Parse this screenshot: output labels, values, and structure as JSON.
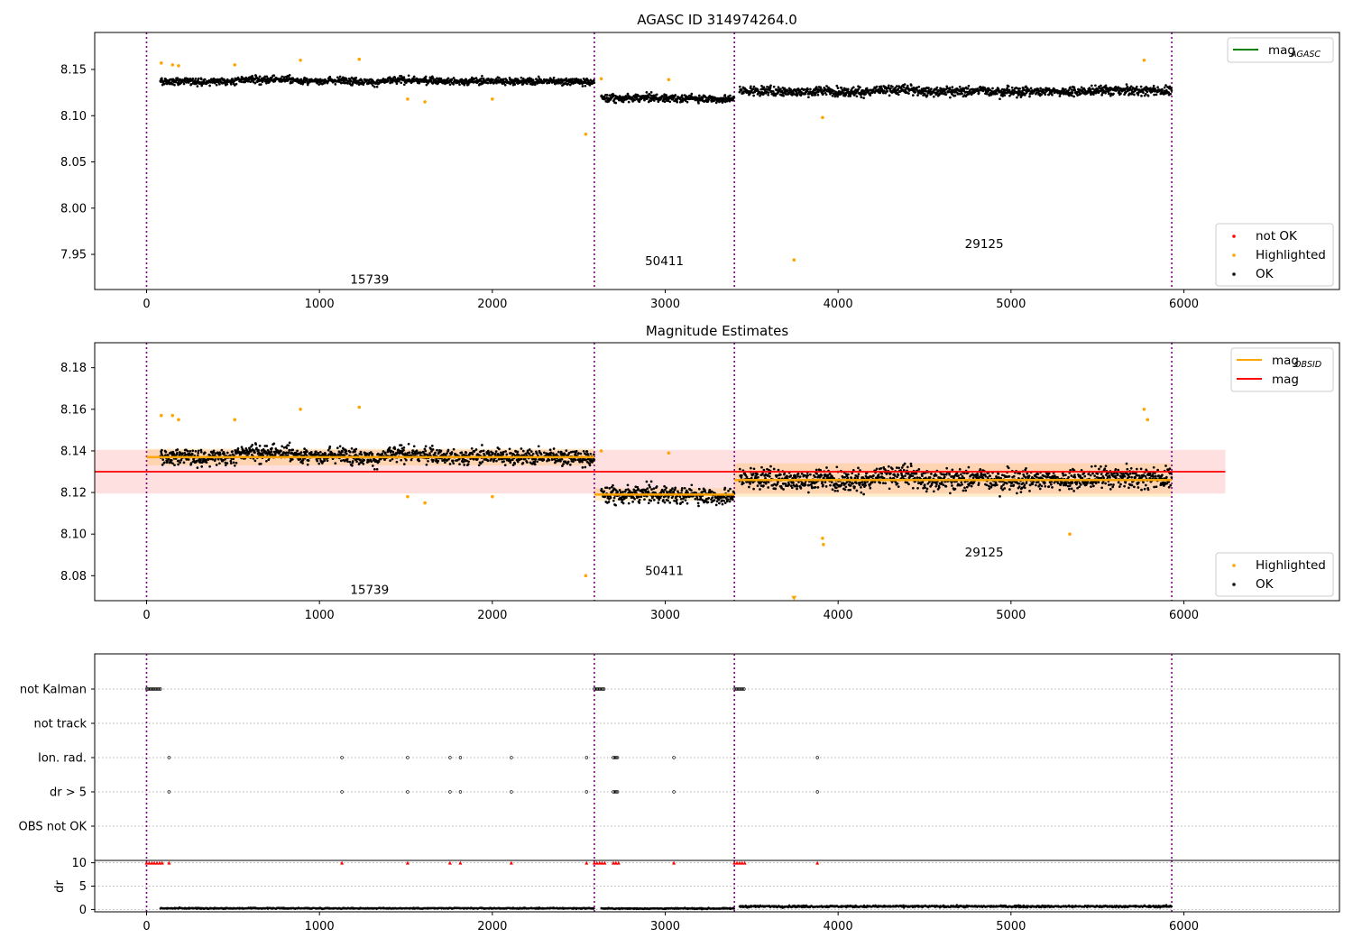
{
  "chart_data": [
    {
      "type": "scatter",
      "title": "AGASC ID 314974264.0",
      "xlim": [
        -300,
        6900
      ],
      "ylim": [
        7.912,
        8.19
      ],
      "xticks": [
        0,
        1000,
        2000,
        3000,
        4000,
        5000,
        6000
      ],
      "yticks": [
        7.95,
        8.0,
        8.05,
        8.1,
        8.15
      ],
      "obs_boundaries": [
        0,
        2590,
        3400,
        5930
      ],
      "obs_labels": [
        {
          "text": "15739",
          "x": 1290,
          "y": 7.922
        },
        {
          "text": "50411",
          "x": 2995,
          "y": 7.942
        },
        {
          "text": "29125",
          "x": 4845,
          "y": 7.961
        }
      ],
      "segments": [
        {
          "x": [
            80,
            2590
          ],
          "center": 8.138,
          "spread": 0.007,
          "extreme": 8.155
        },
        {
          "x": [
            2630,
            3400
          ],
          "center": 8.119,
          "spread": 0.007,
          "extreme": 8.135
        },
        {
          "x": [
            3430,
            5930
          ],
          "center": 8.127,
          "spread": 0.009,
          "extreme": 8.148
        }
      ],
      "highlighted_points": [
        [
          85,
          8.157
        ],
        [
          150,
          8.155
        ],
        [
          185,
          8.154
        ],
        [
          510,
          8.155
        ],
        [
          890,
          8.16
        ],
        [
          1230,
          8.161
        ],
        [
          1510,
          8.118
        ],
        [
          1610,
          8.115
        ],
        [
          2000,
          8.118
        ],
        [
          2540,
          8.08
        ],
        [
          2630,
          8.14
        ],
        [
          3020,
          8.139
        ],
        [
          3745,
          7.944
        ],
        [
          3910,
          8.098
        ],
        [
          5770,
          8.16
        ]
      ],
      "lines": [
        {
          "name": "mag_AGASC",
          "label_main": "mag",
          "label_sub": "AGASC",
          "color": "#008000"
        }
      ],
      "legend_points": [
        {
          "label": "not OK",
          "color": "#ff0000"
        },
        {
          "label": "Highlighted",
          "color": "#ffa500"
        },
        {
          "label": "OK",
          "color": "#000000"
        }
      ]
    },
    {
      "type": "scatter",
      "title": "Magnitude Estimates",
      "xlim": [
        -300,
        6900
      ],
      "ylim": [
        8.068,
        8.192
      ],
      "xticks": [
        0,
        1000,
        2000,
        3000,
        4000,
        5000,
        6000
      ],
      "yticks": [
        8.08,
        8.1,
        8.12,
        8.14,
        8.16,
        8.18
      ],
      "obs_boundaries": [
        0,
        2590,
        3400,
        5930
      ],
      "obs_labels": [
        {
          "text": "15739",
          "x": 1290,
          "y": 8.073
        },
        {
          "text": "50411",
          "x": 2995,
          "y": 8.082
        },
        {
          "text": "29125",
          "x": 4845,
          "y": 8.091
        }
      ],
      "mag": 8.13,
      "mag_band": [
        8.1195,
        8.1405
      ],
      "mag_xrange": [
        -300,
        6240
      ],
      "mag_obsid": [
        {
          "x": [
            0,
            2590
          ],
          "value": 8.137,
          "band": [
            8.133,
            8.141
          ]
        },
        {
          "x": [
            2590,
            3400
          ],
          "value": 8.119,
          "band": [
            8.116,
            8.122
          ]
        },
        {
          "x": [
            3400,
            5930
          ],
          "value": 8.126,
          "band": [
            8.118,
            8.134
          ]
        }
      ],
      "highlighted_points": [
        [
          85,
          8.157
        ],
        [
          150,
          8.157
        ],
        [
          185,
          8.155
        ],
        [
          510,
          8.155
        ],
        [
          890,
          8.16
        ],
        [
          1230,
          8.161
        ],
        [
          1510,
          8.118
        ],
        [
          1610,
          8.115
        ],
        [
          2000,
          8.118
        ],
        [
          2540,
          8.08
        ],
        [
          2630,
          8.14
        ],
        [
          3020,
          8.139
        ],
        [
          3910,
          8.098
        ],
        [
          3915,
          8.095
        ],
        [
          5340,
          8.1
        ],
        [
          5770,
          8.16
        ],
        [
          5790,
          8.155
        ]
      ],
      "offscale_marker": {
        "x": 3745,
        "y": 8.069
      },
      "lines": [
        {
          "name": "mag_OBSID",
          "label_main": "mag",
          "label_sub": "OBSID",
          "color": "#ffa500"
        },
        {
          "name": "mag",
          "label_main": "mag",
          "label_sub": "",
          "color": "#ff0000"
        }
      ],
      "legend_points": [
        {
          "label": "Highlighted",
          "color": "#ffa500"
        },
        {
          "label": "OK",
          "color": "#000000"
        }
      ]
    },
    {
      "type": "scatter",
      "title": "",
      "xlim": [
        -300,
        6900
      ],
      "categories": [
        "not Kalman",
        "not track",
        "Ion. rad.",
        "dr > 5",
        "OBS not OK"
      ],
      "flag_ranges": {
        "not Kalman": [
          [
            0,
            85
          ],
          [
            2590,
            2650
          ],
          [
            3400,
            3460
          ]
        ],
        "not track": [],
        "Ion. rad.": [
          [
            130,
            135
          ],
          [
            1130,
            1135
          ],
          [
            1510,
            1515
          ],
          [
            1755,
            1760
          ],
          [
            1815,
            1820
          ],
          [
            2110,
            2115
          ],
          [
            2545,
            2550
          ],
          [
            2700,
            2730
          ],
          [
            3050,
            3055
          ],
          [
            3880,
            3885
          ]
        ],
        "dr > 5": [
          [
            130,
            135
          ],
          [
            1130,
            1135
          ],
          [
            1510,
            1515
          ],
          [
            1755,
            1760
          ],
          [
            1815,
            1820
          ],
          [
            2110,
            2115
          ],
          [
            2545,
            2550
          ],
          [
            2700,
            2730
          ],
          [
            3050,
            3055
          ],
          [
            3880,
            3885
          ]
        ],
        "OBS not OK": []
      }
    },
    {
      "type": "scatter",
      "title": "",
      "ylabel": "dr",
      "xlim": [
        -300,
        6900
      ],
      "ylim": [
        -0.5,
        10.5
      ],
      "xticks": [
        0,
        1000,
        2000,
        3000,
        4000,
        5000,
        6000
      ],
      "yticks": [
        0,
        5,
        10
      ],
      "clipped_at": 10,
      "clipped_x": [
        0,
        15,
        30,
        45,
        60,
        75,
        90,
        130,
        1130,
        1510,
        1755,
        1815,
        2110,
        2545,
        2590,
        2605,
        2620,
        2635,
        2650,
        2700,
        2715,
        2730,
        3050,
        3400,
        3415,
        3430,
        3445,
        3460,
        3880
      ],
      "segments": [
        {
          "x": [
            80,
            2590
          ],
          "center": 0.25,
          "spread": 0.2
        },
        {
          "x": [
            2630,
            3400
          ],
          "center": 0.2,
          "spread": 0.2
        },
        {
          "x": [
            3430,
            5930
          ],
          "center": 0.65,
          "spread": 0.35
        }
      ]
    }
  ]
}
